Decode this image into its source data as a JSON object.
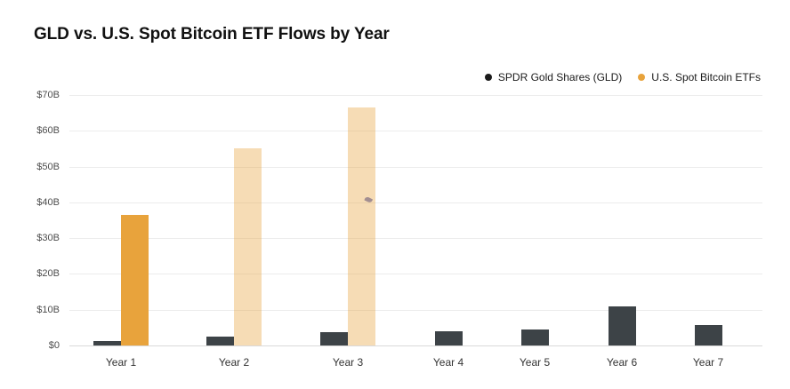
{
  "chart_data": {
    "type": "bar",
    "title": "GLD vs. U.S. Spot Bitcoin ETF Flows by Year",
    "categories": [
      "Year 1",
      "Year 2",
      "Year 3",
      "Year 4",
      "Year 5",
      "Year 6",
      "Year 7"
    ],
    "series": [
      {
        "name": "SPDR Gold Shares (GLD)",
        "color": "#3d4347",
        "legend_dot_color": "#1a1a1a",
        "values": [
          1.2,
          2.5,
          3.6,
          3.9,
          4.5,
          10.8,
          5.6
        ]
      },
      {
        "name": "U.S. Spot Bitcoin ETFs",
        "color": "#e8a33c",
        "muted_color": "rgba(232,163,60,0.38)",
        "values": [
          36.5,
          55,
          66.5,
          null,
          null,
          null,
          null
        ],
        "muted": [
          false,
          true,
          true,
          false,
          false,
          false,
          false
        ]
      }
    ],
    "y_ticks": [
      {
        "value": 70,
        "label": "$70B"
      },
      {
        "value": 60,
        "label": "$60B"
      },
      {
        "value": 50,
        "label": "$50B"
      },
      {
        "value": 40,
        "label": "$40B"
      },
      {
        "value": 30,
        "label": "$30B"
      },
      {
        "value": 20,
        "label": "$20B"
      },
      {
        "value": 10,
        "label": "$10B"
      },
      {
        "value": 0,
        "label": "$0"
      }
    ],
    "ylim": [
      0,
      70
    ],
    "grid": "horizontal",
    "legend_position": "top-right"
  },
  "colors": {
    "background": "#ffffff",
    "gridline": "#ececec",
    "baseline": "#d9d9d9",
    "title_text": "#111111",
    "axis_text": "#4d4d4d",
    "legend_text": "#1a1a1a",
    "cursor_artifact": "#8d7a88"
  }
}
